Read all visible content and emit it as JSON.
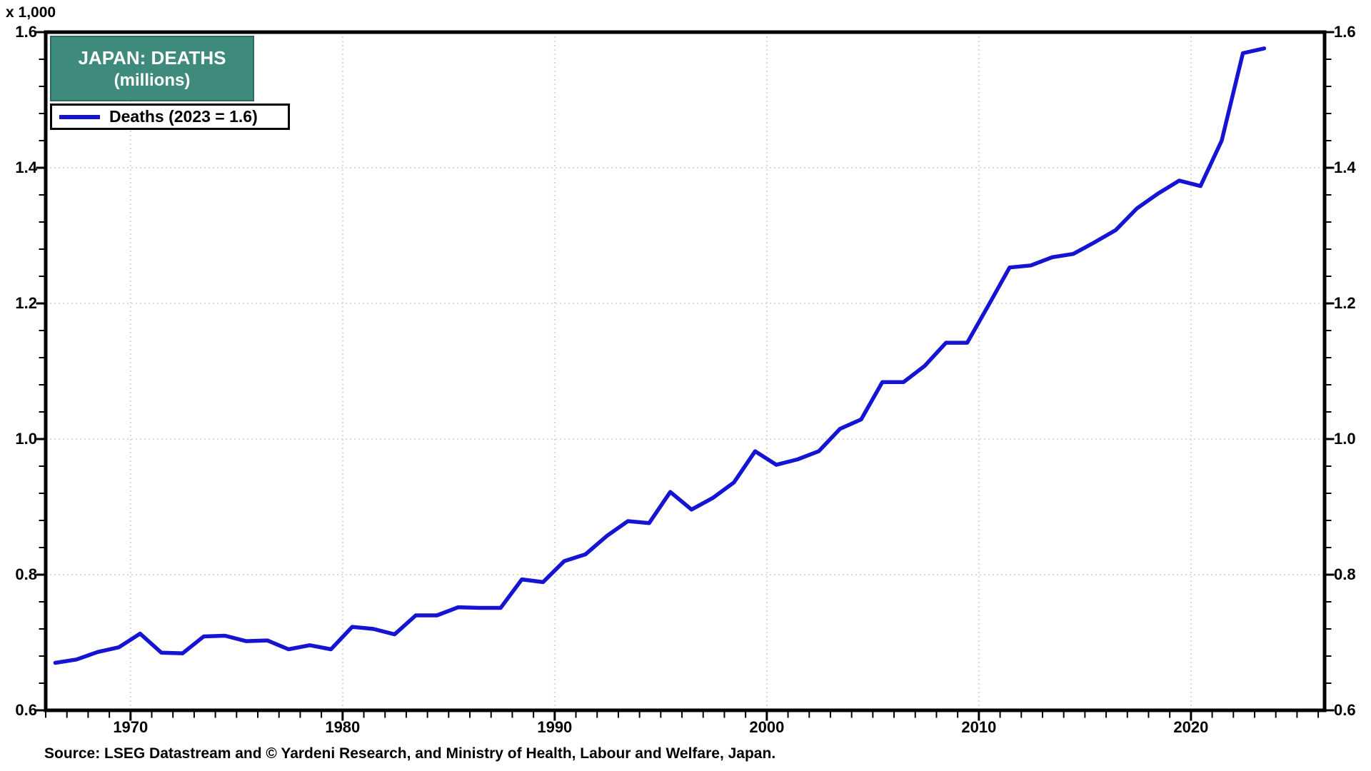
{
  "axis": {
    "unit_label": "x 1,000"
  },
  "title_box": {
    "line1": "JAPAN: DEATHS",
    "line2": "(millions)"
  },
  "legend": {
    "label": "Deaths (2023 = 1.6)"
  },
  "source": {
    "text": "Source: LSEG Datastream and © Yardeni Research, and Ministry of Health, Labour and Welfare, Japan."
  },
  "colors": {
    "line": "#1414d2",
    "title_bg": "#3e8b7d",
    "title_border": "#2c6b5f",
    "grid": "#d9d9d9",
    "axis": "#000000"
  },
  "chart_data": {
    "type": "line",
    "title": "JAPAN: DEATHS (millions)",
    "xlabel": "",
    "ylabel": "x 1,000",
    "xlim": [
      1966,
      2026.3
    ],
    "ylim": [
      0.6,
      1.6
    ],
    "x_major_ticks": [
      1970,
      1980,
      1990,
      2000,
      2010,
      2020
    ],
    "x_minor_step": 1,
    "y_major_ticks": [
      0.6,
      0.8,
      1.0,
      1.2,
      1.4,
      1.6
    ],
    "y_minor_step": 0.04,
    "grid": "dotted gridlines at major ticks, labels on both y axes",
    "legend_position": "top-left",
    "series": [
      {
        "name": "Deaths (2023 = 1.6)",
        "x": [
          1966,
          1967,
          1968,
          1969,
          1970,
          1971,
          1972,
          1973,
          1974,
          1975,
          1976,
          1977,
          1978,
          1979,
          1980,
          1981,
          1982,
          1983,
          1984,
          1985,
          1986,
          1987,
          1988,
          1989,
          1990,
          1991,
          1992,
          1993,
          1994,
          1995,
          1996,
          1997,
          1998,
          1999,
          2000,
          2001,
          2002,
          2003,
          2004,
          2005,
          2006,
          2007,
          2008,
          2009,
          2010,
          2011,
          2012,
          2013,
          2014,
          2015,
          2016,
          2017,
          2018,
          2019,
          2020,
          2021,
          2022,
          2023
        ],
        "values": [
          0.67,
          0.675,
          0.686,
          0.693,
          0.713,
          0.685,
          0.684,
          0.709,
          0.71,
          0.702,
          0.703,
          0.69,
          0.696,
          0.69,
          0.723,
          0.72,
          0.712,
          0.74,
          0.74,
          0.752,
          0.751,
          0.751,
          0.793,
          0.789,
          0.82,
          0.83,
          0.857,
          0.879,
          0.876,
          0.922,
          0.896,
          0.913,
          0.936,
          0.982,
          0.962,
          0.97,
          0.982,
          1.015,
          1.029,
          1.084,
          1.084,
          1.108,
          1.142,
          1.142,
          1.197,
          1.253,
          1.256,
          1.268,
          1.273,
          1.29,
          1.308,
          1.34,
          1.362,
          1.381,
          1.373,
          1.44,
          1.569,
          1.576
        ]
      }
    ]
  }
}
